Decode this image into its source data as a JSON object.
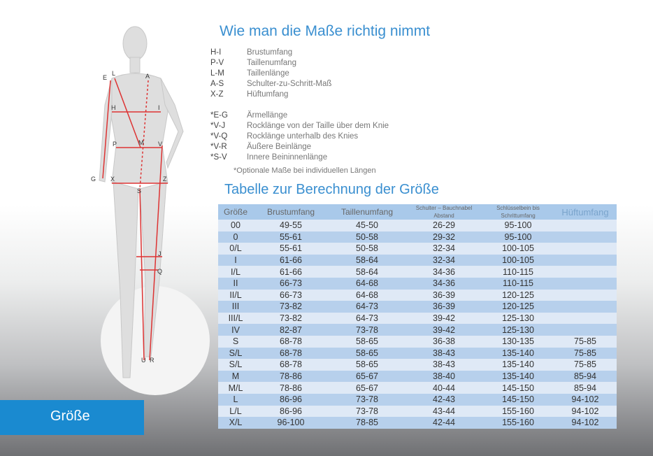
{
  "title": "Wie man die Maße richtig nimmt",
  "legend": [
    {
      "code": "H-I",
      "label": "Brustumfang"
    },
    {
      "code": "P-V",
      "label": "Taillenumfang"
    },
    {
      "code": "L-M",
      "label": "Taillenlänge"
    },
    {
      "code": "A-S",
      "label": "Schulter-zu-Schritt-Maß"
    },
    {
      "code": "X-Z",
      "label": "Hüftumfang"
    }
  ],
  "optional": [
    {
      "code": "*E-G",
      "label": "Ärmellänge"
    },
    {
      "code": "*V-J",
      "label": "Rocklänge von der Taille über dem Knie"
    },
    {
      "code": "*V-Q",
      "label": "Rocklänge unterhalb des Knies"
    },
    {
      "code": "*V-R",
      "label": "Äußere Beinlänge"
    },
    {
      "code": "*S-V",
      "label": "Innere Beininnenlänge"
    }
  ],
  "note": "*Optionale Maße bei individuellen Längen",
  "table_title": "Tabelle zur Berechnung der Größe",
  "figure_labels": [
    "E",
    "L",
    "A",
    "H",
    "I",
    "P",
    "M",
    "V",
    "G",
    "X",
    "S",
    "Z",
    "J",
    "Q",
    "U",
    "R"
  ],
  "table": {
    "headers": [
      "Größe",
      "Brustumfang",
      "Taillenumfang",
      "Schulter – Bauchnabel Abstand",
      "Schlüsselbein bis Schrittumfang",
      "Hüftumfang"
    ],
    "rows": [
      [
        "00",
        "49-55",
        "45-50",
        "26-29",
        "95-100",
        ""
      ],
      [
        "0",
        "55-61",
        "50-58",
        "29-32",
        "95-100",
        ""
      ],
      [
        "0/L",
        "55-61",
        "50-58",
        "32-34",
        "100-105",
        ""
      ],
      [
        "I",
        "61-66",
        "58-64",
        "32-34",
        "100-105",
        ""
      ],
      [
        "I/L",
        "61-66",
        "58-64",
        "34-36",
        "110-115",
        ""
      ],
      [
        "II",
        "66-73",
        "64-68",
        "34-36",
        "110-115",
        ""
      ],
      [
        "II/L",
        "66-73",
        "64-68",
        "36-39",
        "120-125",
        ""
      ],
      [
        "III",
        "73-82",
        "64-73",
        "36-39",
        "120-125",
        ""
      ],
      [
        "III/L",
        "73-82",
        "64-73",
        "39-42",
        "125-130",
        ""
      ],
      [
        "IV",
        "82-87",
        "73-78",
        "39-42",
        "125-130",
        ""
      ],
      [
        "S",
        "68-78",
        "58-65",
        "36-38",
        "130-135",
        "75-85"
      ],
      [
        "S/L",
        "68-78",
        "58-65",
        "38-43",
        "135-140",
        "75-85"
      ],
      [
        "S/L",
        "68-78",
        "58-65",
        "38-43",
        "135-140",
        "75-85"
      ],
      [
        "M",
        "78-86",
        "65-67",
        "38-40",
        "135-140",
        "85-94"
      ],
      [
        "M/L",
        "78-86",
        "65-67",
        "40-44",
        "145-150",
        "85-94"
      ],
      [
        "L",
        "86-96",
        "73-78",
        "42-43",
        "145-150",
        "94-102"
      ],
      [
        "L/L",
        "86-96",
        "73-78",
        "43-44",
        "155-160",
        "94-102"
      ],
      [
        "X/L",
        "96-100",
        "78-85",
        "42-44",
        "155-160",
        "94-102"
      ]
    ]
  },
  "size_button": "Größe"
}
